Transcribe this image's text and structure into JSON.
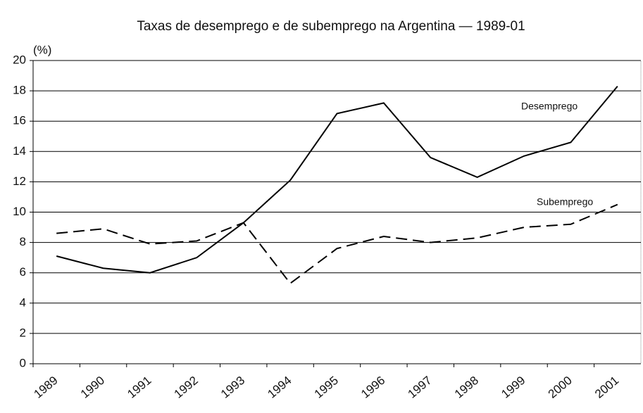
{
  "chart_data": {
    "type": "line",
    "title": "Taxas de desemprego e de subemprego na Argentina — 1989-01",
    "y_label": "(%)",
    "categories": [
      "1989",
      "1990",
      "1991",
      "1992",
      "1993",
      "1994",
      "1995",
      "1996",
      "1997",
      "1998",
      "1999",
      "2000",
      "2001"
    ],
    "series": [
      {
        "name": "Desemprego",
        "color": "#000000",
        "dashed": false,
        "values": [
          7.1,
          6.3,
          6.0,
          7.0,
          9.3,
          12.1,
          16.5,
          17.2,
          13.6,
          12.3,
          13.7,
          14.6,
          18.3
        ]
      },
      {
        "name": "Subemprego",
        "color": "#000000",
        "dashed": true,
        "values": [
          8.6,
          8.9,
          7.9,
          8.1,
          9.3,
          5.3,
          7.6,
          8.4,
          8.0,
          8.3,
          9.0,
          9.2,
          10.5
        ]
      }
    ],
    "ylim": [
      0,
      20
    ],
    "yticks": [
      0,
      2,
      4,
      6,
      8,
      10,
      12,
      14,
      16,
      18,
      20
    ],
    "grid": true
  }
}
